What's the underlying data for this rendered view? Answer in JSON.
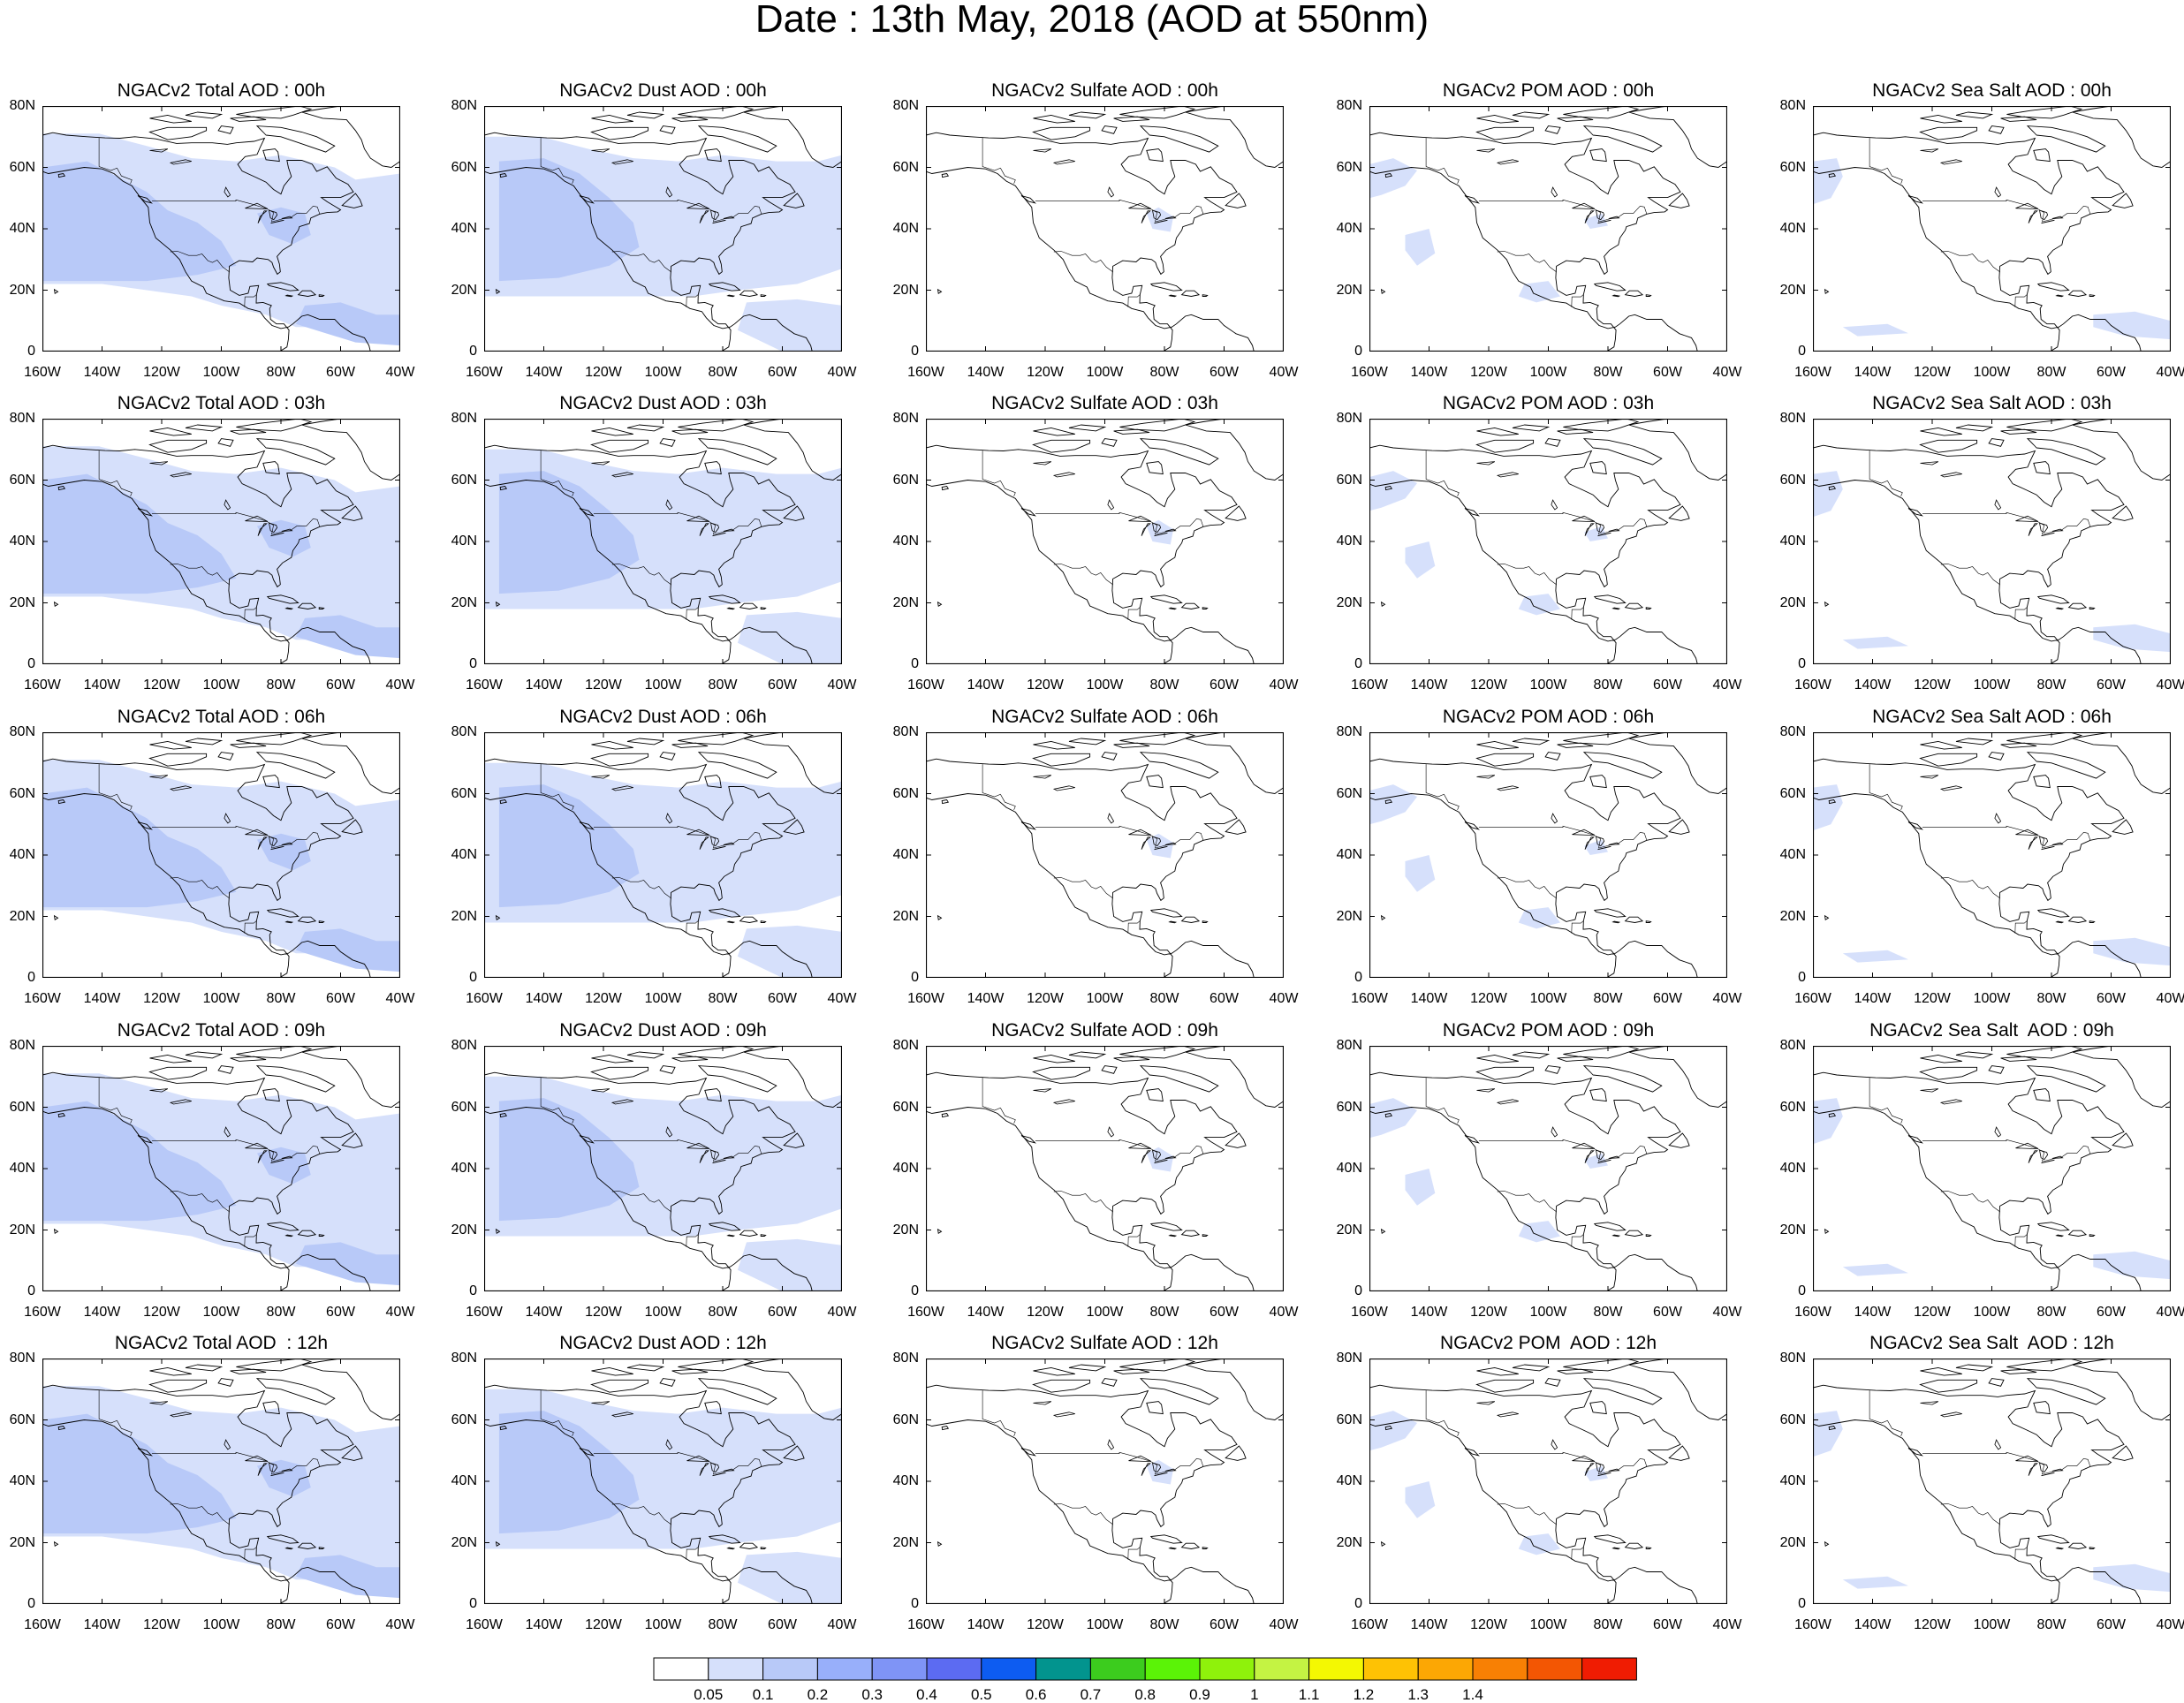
{
  "title": "Date : 13th May, 2018 (AOD at 550nm)",
  "map": {
    "lon_range": [
      "160W",
      "40W"
    ],
    "lat_range": [
      "0",
      "80N"
    ],
    "lat_ticks": [
      "80N",
      "60N",
      "40N",
      "20N",
      "0"
    ],
    "lon_ticks": [
      "160W",
      "140W",
      "120W",
      "100W",
      "80W",
      "60W",
      "40W"
    ],
    "projection": "cylindrical equidistant",
    "coastlines": "black outline"
  },
  "panels": [
    {
      "title": "NGACv2 Total AOD : 00h",
      "species": "total",
      "lat_ticks_shown": [
        "80N",
        "60N",
        "40N",
        "20N",
        "0"
      ]
    },
    {
      "title": "NGACv2 Dust AOD : 00h",
      "species": "dust",
      "lat_ticks_shown": [
        "80N",
        "60N",
        "40N",
        "20N",
        "0"
      ]
    },
    {
      "title": "NGACv2 Sulfate AOD : 00h",
      "species": "sulfate",
      "lat_ticks_shown": [
        "80N",
        "60N",
        "40N",
        "20N",
        "0"
      ]
    },
    {
      "title": "NGACv2 POM AOD : 00h",
      "species": "pom",
      "lat_ticks_shown": [
        "80N",
        "60N",
        "40N",
        "20N",
        "0"
      ]
    },
    {
      "title": "NGACv2 Sea Salt AOD : 00h",
      "species": "seasalt",
      "lat_ticks_shown": [
        "80N",
        "60N",
        "40N",
        "20N",
        "0"
      ]
    },
    {
      "title": "NGACv2 Total AOD : 03h",
      "species": "total",
      "lat_ticks_shown": [
        "80N",
        "60N",
        "40N",
        "20N",
        "0"
      ]
    },
    {
      "title": "NGACv2 Dust AOD : 03h",
      "species": "dust",
      "lat_ticks_shown": [
        "80N",
        "60N",
        "40N",
        "20N",
        "0"
      ]
    },
    {
      "title": "NGACv2 Sulfate AOD : 03h",
      "species": "sulfate",
      "lat_ticks_shown": [
        "80N",
        "60N",
        "40N",
        "20N",
        "0"
      ]
    },
    {
      "title": "NGACv2 POM AOD : 03h",
      "species": "pom",
      "lat_ticks_shown": [
        "80N",
        "60N",
        "40N",
        "20N",
        "0"
      ]
    },
    {
      "title": "NGACv2 Sea Salt AOD : 03h",
      "species": "seasalt",
      "lat_ticks_shown": [
        "80N",
        "60N",
        "40N",
        "20N",
        "0"
      ]
    },
    {
      "title": "NGACv2 Total AOD : 06h",
      "species": "total",
      "lat_ticks_shown": [
        "80N",
        "60N",
        "40N",
        "20N",
        "0"
      ]
    },
    {
      "title": "NGACv2 Dust AOD : 06h",
      "species": "dust",
      "lat_ticks_shown": [
        "80N",
        "60N",
        "40N",
        "20N",
        "0"
      ]
    },
    {
      "title": "NGACv2 Sulfate AOD : 06h",
      "species": "sulfate",
      "lat_ticks_shown": [
        "80N",
        "60N",
        "40N",
        "20N",
        "0"
      ]
    },
    {
      "title": "NGACv2 POM AOD : 06h",
      "species": "pom",
      "lat_ticks_shown": [
        "80N",
        "60N",
        "40N",
        "20N",
        "0"
      ]
    },
    {
      "title": "NGACv2 Sea Salt AOD : 06h",
      "species": "seasalt",
      "lat_ticks_shown": [
        "80N",
        "60N",
        "40N",
        "20N",
        "0"
      ]
    },
    {
      "title": "NGACv2 Total AOD : 09h",
      "species": "total",
      "lat_ticks_shown": [
        "80N",
        "60N",
        "40N",
        "20N",
        "0"
      ]
    },
    {
      "title": "NGACv2 Dust AOD : 09h",
      "species": "dust",
      "lat_ticks_shown": [
        "80N",
        "60N",
        "40N",
        "20N",
        "0"
      ]
    },
    {
      "title": "NGACv2 Sulfate AOD : 09h",
      "species": "sulfate",
      "lat_ticks_shown": [
        "80N",
        "60N",
        "40N",
        "20N",
        "0"
      ]
    },
    {
      "title": "NGACv2 POM AOD : 09h",
      "species": "pom",
      "lat_ticks_shown": [
        "80N",
        "60N",
        "40N",
        "20N",
        "0"
      ]
    },
    {
      "title": "NGACv2 Sea Salt  AOD : 09h",
      "species": "seasalt",
      "lat_ticks_shown": [
        "80N",
        "60N",
        "40N",
        "20N",
        "0"
      ]
    },
    {
      "title": "NGACv2 Total AOD  : 12h",
      "species": "total",
      "lat_ticks_shown": [
        "80N",
        "60N",
        "40N",
        "20N",
        "0"
      ]
    },
    {
      "title": "NGACv2 Dust AOD : 12h",
      "species": "dust",
      "lat_ticks_shown": [
        "80N",
        "60N",
        "40N",
        "20N",
        "0"
      ]
    },
    {
      "title": "NGACv2 Sulfate AOD : 12h",
      "species": "sulfate",
      "lat_ticks_shown": [
        "80N",
        "60N",
        "40N",
        "20N",
        "0"
      ]
    },
    {
      "title": "NGACv2 POM  AOD : 12h",
      "species": "pom",
      "lat_ticks_shown": [
        "80N",
        "60N",
        "40N",
        "20N",
        "0"
      ]
    },
    {
      "title": "NGACv2 Sea Salt  AOD : 12h",
      "species": "seasalt",
      "lat_ticks_shown": [
        "80N",
        "60N",
        "40N",
        "20N",
        "0"
      ]
    }
  ],
  "colorbar": {
    "boundaries": [
      "0.05",
      "0.1",
      "0.2",
      "0.3",
      "0.4",
      "0.5",
      "0.6",
      "0.7",
      "0.8",
      "0.9",
      "1",
      "1.1",
      "1.2",
      "1.3",
      "1.4"
    ],
    "colors": [
      "#ffffff",
      "#d6e0fb",
      "#b8c9f8",
      "#98affa",
      "#7f94f6",
      "#5c6bf2",
      "#0d5cf1",
      "#02948e",
      "#3ccc1e",
      "#5bf307",
      "#8ff20b",
      "#c4f343",
      "#f4f802",
      "#fec204",
      "#fca704",
      "#f88004",
      "#f35603",
      "#f01c02"
    ],
    "aod_fill_colors": {
      "light": "#d6e0fb",
      "medium": "#b8c9f8"
    }
  }
}
